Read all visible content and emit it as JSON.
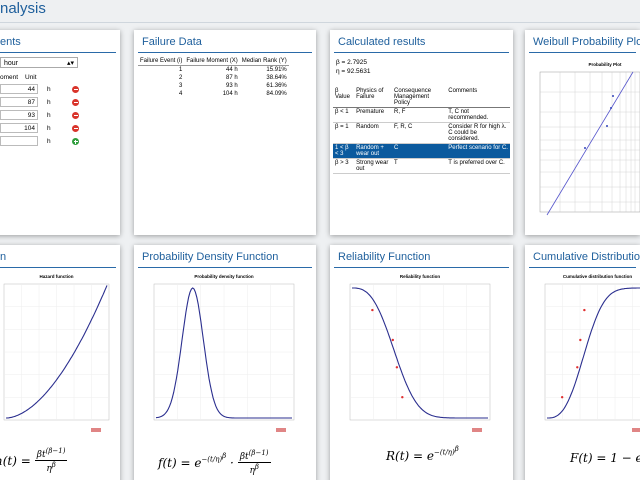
{
  "header": {
    "title": "nalysis"
  },
  "moments_card": {
    "heading": "ents",
    "unit_select": "hour",
    "columns": [
      "oment",
      "Unit"
    ],
    "rows": [
      {
        "value": "44",
        "unit": "h"
      },
      {
        "value": "87",
        "unit": "h"
      },
      {
        "value": "93",
        "unit": "h"
      },
      {
        "value": "104",
        "unit": "h"
      },
      {
        "unit": "h"
      }
    ]
  },
  "failure_data": {
    "heading": "Failure Data",
    "columns": [
      "Failure Event (i)",
      "Failure Moment (X)",
      "Median Rank (Y)"
    ],
    "rows": [
      [
        "1",
        "44 h",
        "15.91%"
      ],
      [
        "2",
        "87 h",
        "38.64%"
      ],
      [
        "3",
        "93 h",
        "61.36%"
      ],
      [
        "4",
        "104 h",
        "84.09%"
      ]
    ]
  },
  "calculated_results": {
    "heading": "Calculated results",
    "beta": "β = 2.7925",
    "eta": "η = 92.5631",
    "columns": [
      "β Value",
      "Physics of Failure",
      "Consequence Management Policy",
      "Comments"
    ],
    "rows": [
      [
        "β < 1",
        "Premature",
        "R, F",
        "T, C not recommended."
      ],
      [
        "β = 1",
        "Random",
        "F, R, C",
        "Consider R for high λ. C could be considered."
      ],
      [
        "1 < β < 3",
        "Random + wear out",
        "C",
        "Perfect scenario for C."
      ],
      [
        "β > 3",
        "Strong wear out",
        "T",
        "T is preferred over C."
      ]
    ]
  },
  "weibull_plot": {
    "heading": "Weibull Probability Plot",
    "plot_title": "Probability Plot"
  },
  "hazard": {
    "heading": "n",
    "plot_title": "Hazard function",
    "formula": {
      "lhs": "h(t) =",
      "num": "βt",
      "num_exp": "(β−1)",
      "den": "η",
      "den_exp": "β"
    }
  },
  "pdf": {
    "heading": "Probability Density Function",
    "plot_title": "Probability density function",
    "formula": {
      "lhs": "f(t) =",
      "base": "e",
      "exp": "−(t/η)",
      "exp2": "β",
      "dot": "·",
      "num": "βt",
      "num_exp": "(β−1)",
      "den": "η",
      "den_exp": "β"
    }
  },
  "reliability": {
    "heading": "Reliability Function",
    "plot_title": "Reliability function",
    "formula": {
      "lhs": "R(t) =",
      "base": "e",
      "exp": "−(t/η)",
      "exp2": "β"
    }
  },
  "cdf": {
    "heading": "Cumulative Distribution I",
    "plot_title": "Cumulative distribution function",
    "formula": {
      "lhs": "F(t) = 1 − e"
    }
  }
}
